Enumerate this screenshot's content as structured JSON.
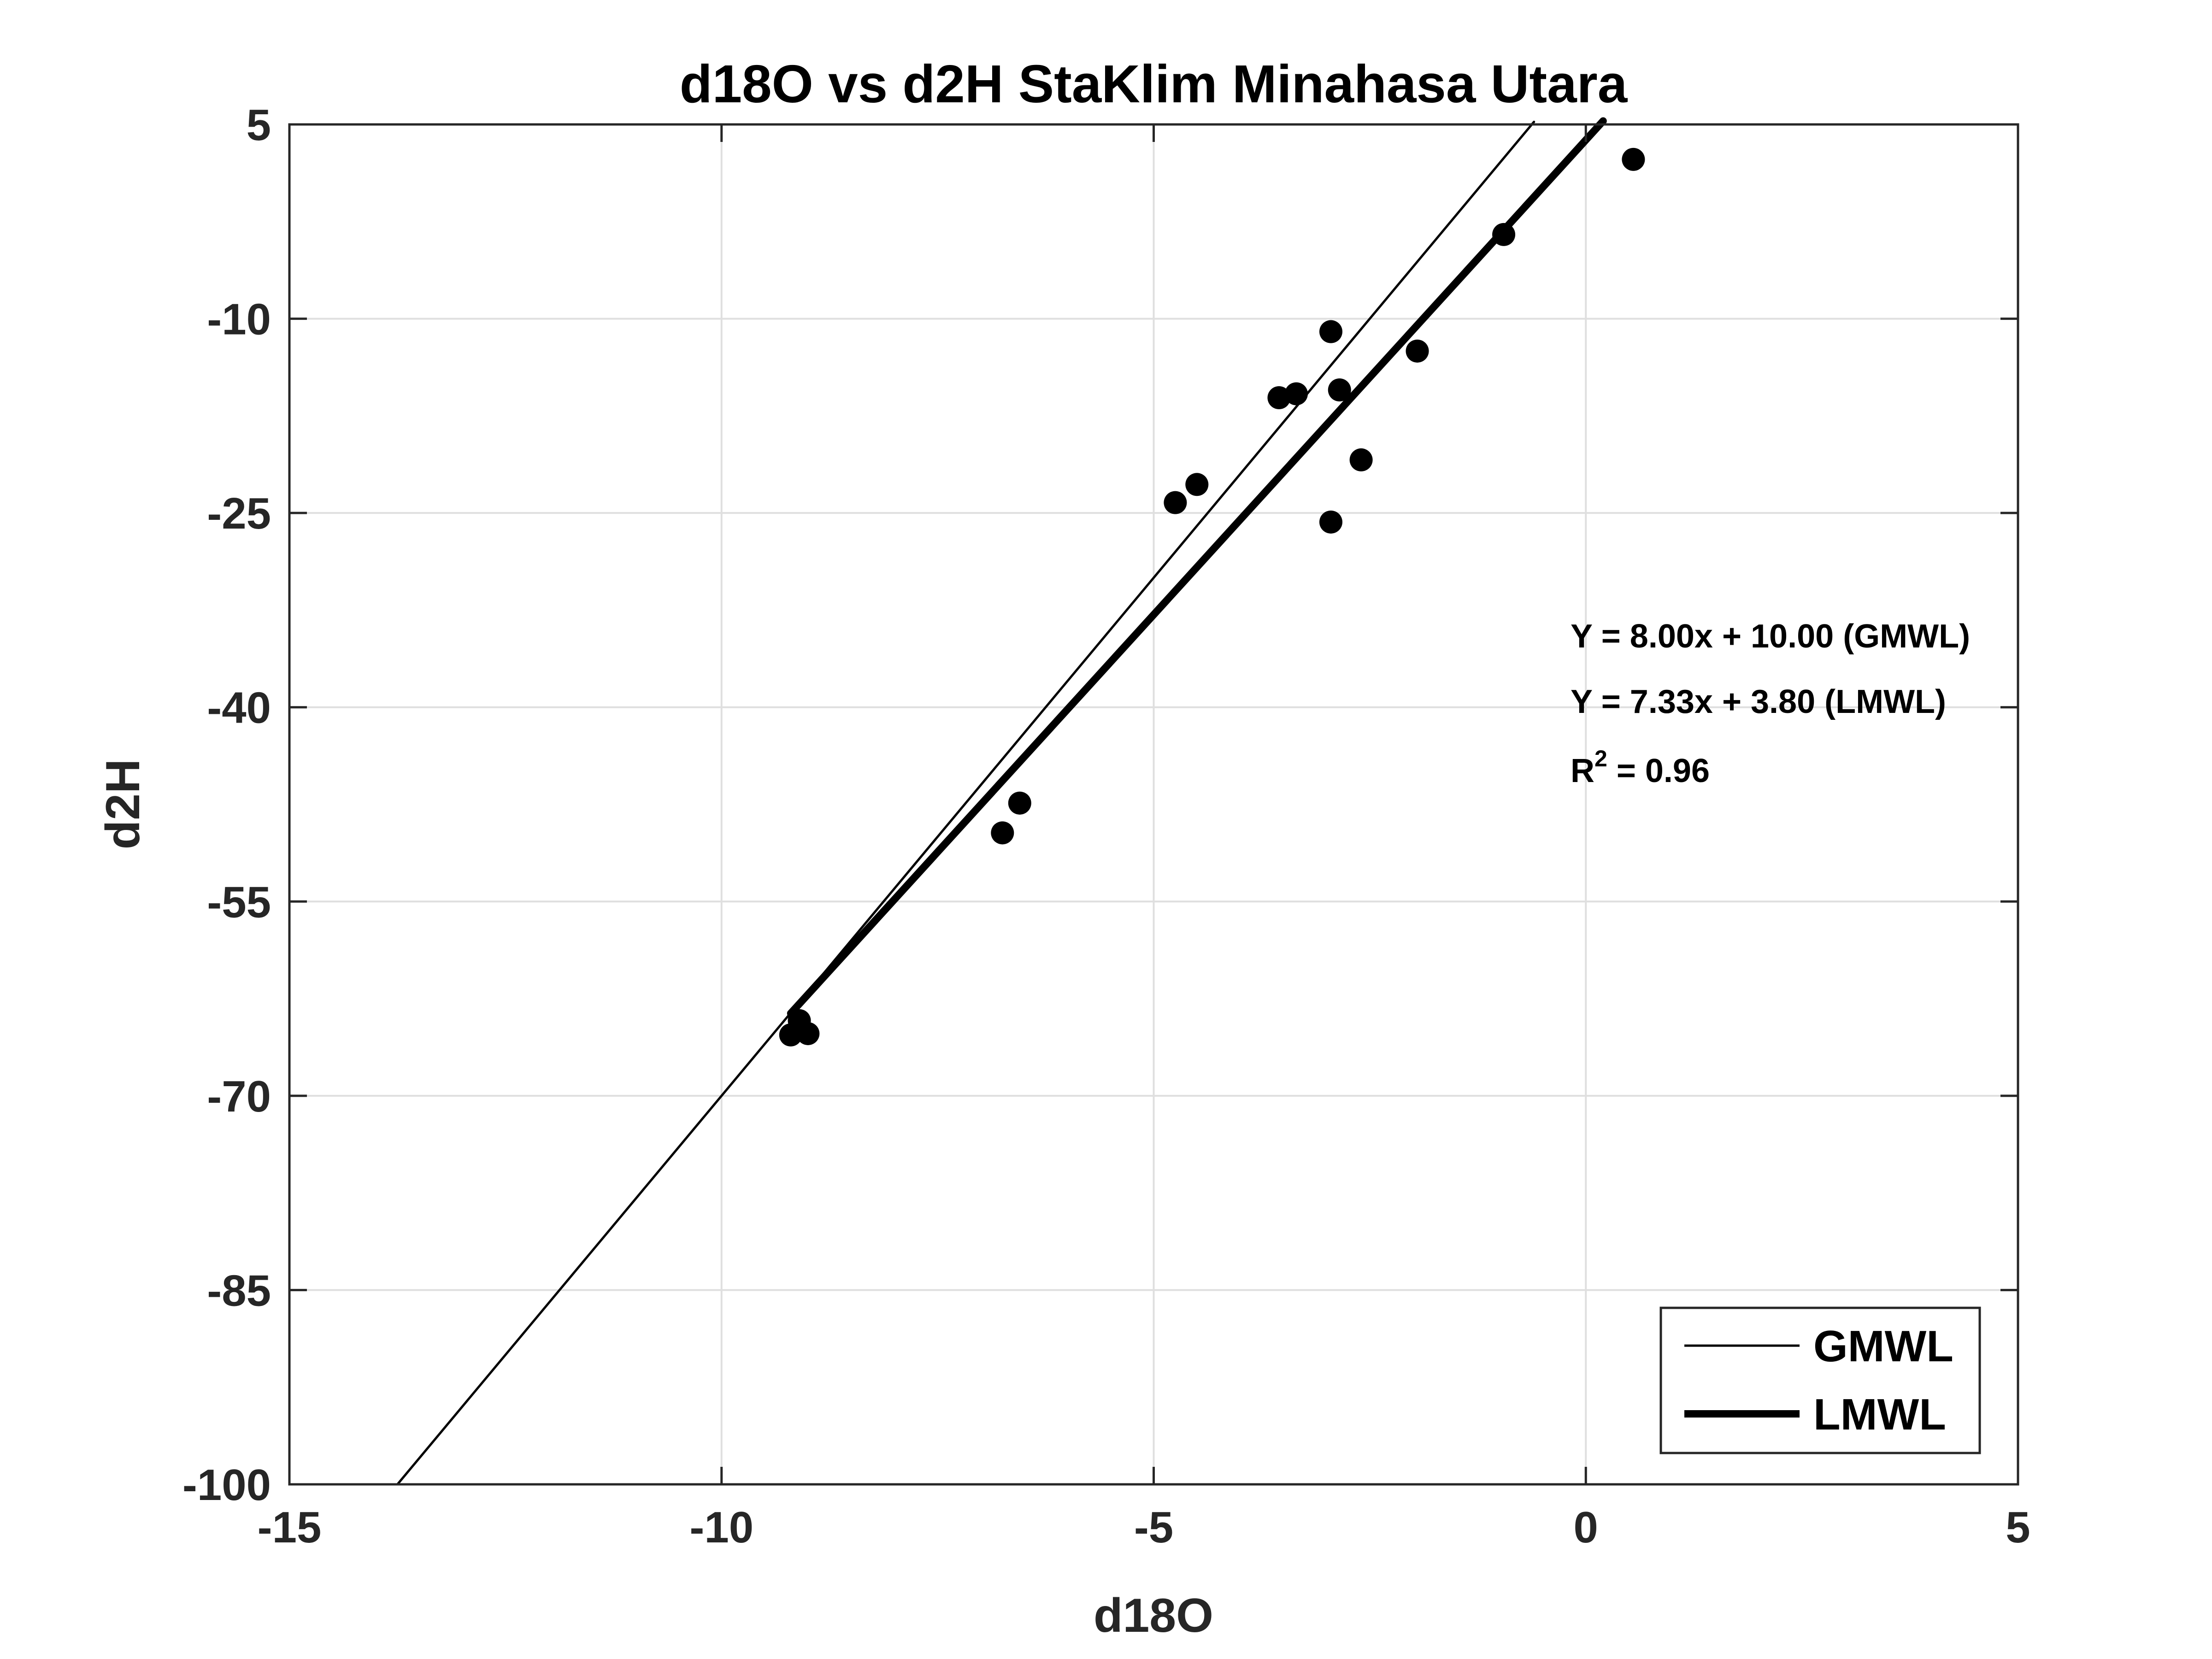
{
  "chart_data": {
    "type": "scatter",
    "title": "d18O vs d2H StaKlim Minahasa Utara",
    "xlabel": "d18O",
    "ylabel": "d2H",
    "xlim": [
      -15,
      5
    ],
    "ylim": [
      -100,
      5
    ],
    "xticks": [
      -15,
      -10,
      -5,
      0,
      5
    ],
    "yticks": [
      -100,
      -85,
      -70,
      -55,
      -40,
      -25,
      -10,
      5
    ],
    "xtick_labels": [
      "-15",
      "-10",
      "-5",
      "0",
      "5"
    ],
    "ytick_labels": [
      "-100",
      "-85",
      "-70",
      "-55",
      "-40",
      "-25",
      "-10",
      "5"
    ],
    "grid": true,
    "legend_position": "bottom-right",
    "points": [
      {
        "x": 0.55,
        "y": 2.3
      },
      {
        "x": -0.95,
        "y": -3.5
      },
      {
        "x": -1.95,
        "y": -12.5
      },
      {
        "x": -2.95,
        "y": -11.0
      },
      {
        "x": -2.85,
        "y": -15.5
      },
      {
        "x": -3.35,
        "y": -15.8
      },
      {
        "x": -3.55,
        "y": -16.1
      },
      {
        "x": -2.6,
        "y": -20.9
      },
      {
        "x": -4.5,
        "y": -22.8
      },
      {
        "x": -4.75,
        "y": -24.2
      },
      {
        "x": -2.95,
        "y": -25.7
      },
      {
        "x": -6.55,
        "y": -47.4
      },
      {
        "x": -6.75,
        "y": -49.7
      },
      {
        "x": -9.1,
        "y": -64.2
      },
      {
        "x": -9.0,
        "y": -65.2
      },
      {
        "x": -9.2,
        "y": -65.3
      }
    ],
    "lines": [
      {
        "name": "GMWL",
        "slope": 8.0,
        "intercept": 10.0,
        "x_range": [
          -13.75,
          -0.6
        ],
        "style": "thin"
      },
      {
        "name": "LMWL",
        "slope": 7.33,
        "intercept": 3.8,
        "x_range": [
          -9.2,
          0.2
        ],
        "style": "thick"
      }
    ],
    "annotations": [
      "Y = 8.00x + 10.00 (GMWL)",
      "Y = 7.33x + 3.80 (LMWL)"
    ],
    "r2_annotation": {
      "prefix": "R",
      "superscript": "2",
      "suffix": " = 0.96"
    },
    "colors": {
      "marker": "#000000",
      "line": "#000000",
      "grid": "#dfdfdf",
      "axis": "#262626"
    }
  }
}
